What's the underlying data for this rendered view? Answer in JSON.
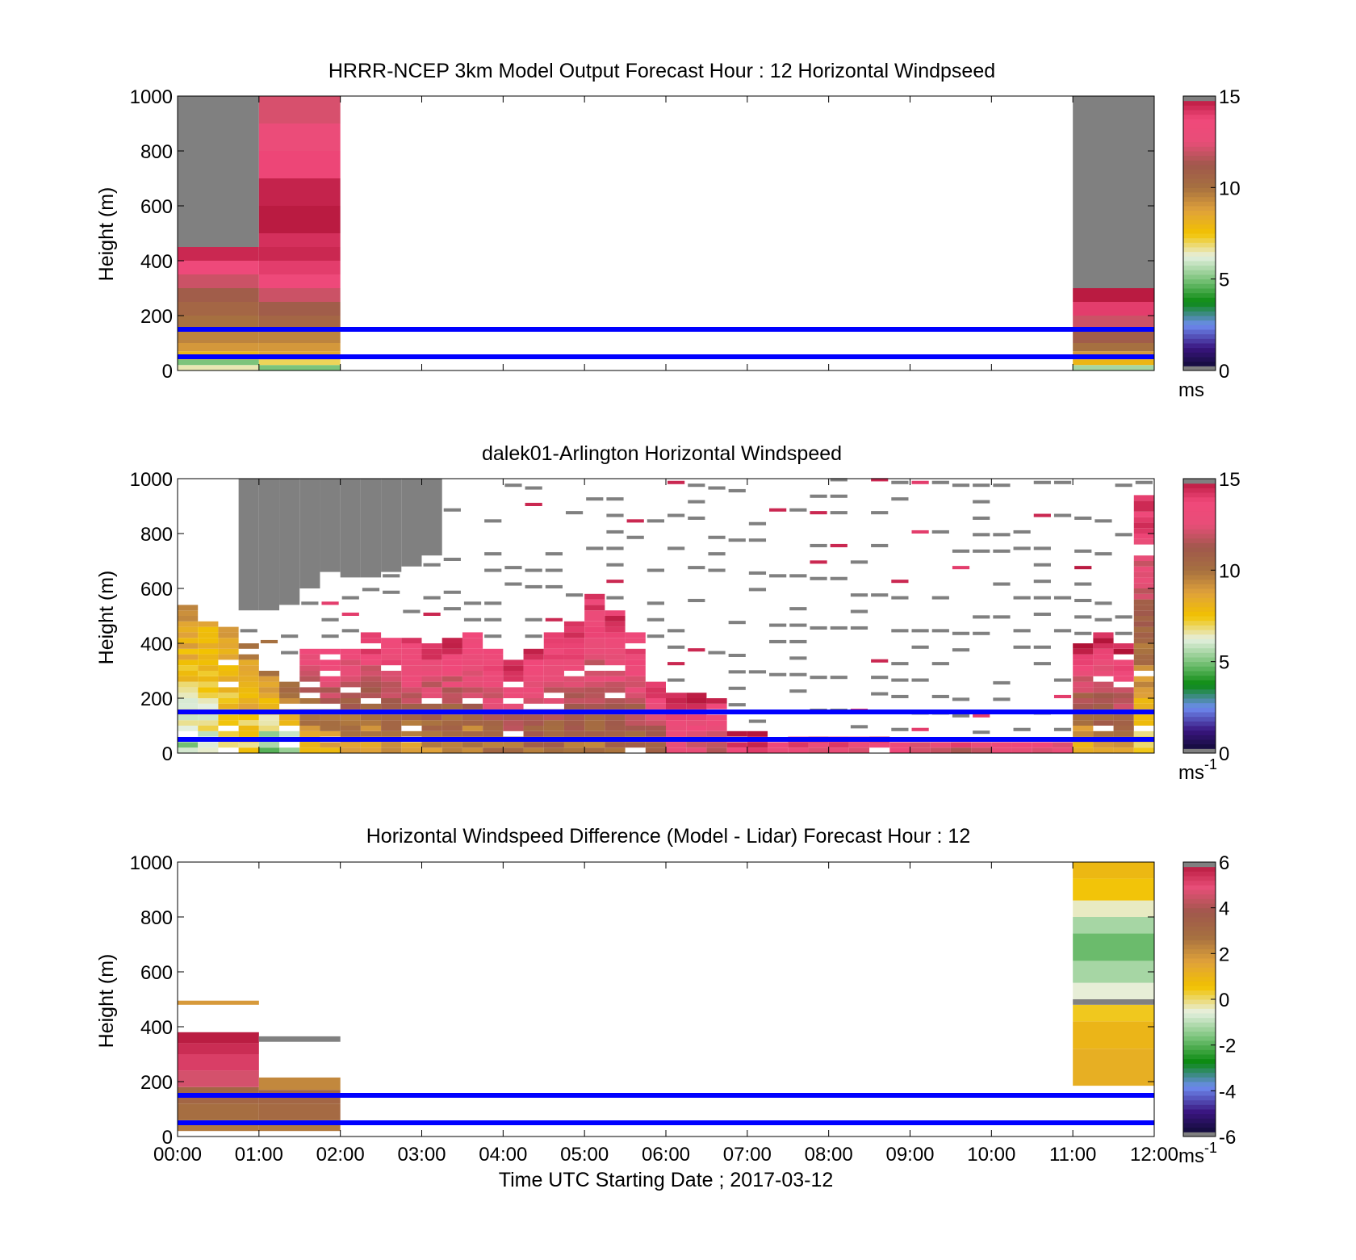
{
  "colors": {
    "gray_missing": "#808080",
    "heights_line": "#0000ff",
    "speed_scale": [
      "#0a0a2a",
      "#3a1580",
      "#6e8cf0",
      "#0a8a10",
      "#7cc47c",
      "#e6f0e0",
      "#f2c200",
      "#e0a23a",
      "#a67040",
      "#a0584c",
      "#e84e78",
      "#f0487a",
      "#b01236"
    ],
    "diff_scale": [
      "#0a0a2a",
      "#3a1580",
      "#6e8cf0",
      "#0a8a10",
      "#7cc47c",
      "#e6f0e0",
      "#f2c200",
      "#e0a23a",
      "#a67040",
      "#a0584c",
      "#e84e78",
      "#b01236"
    ]
  },
  "chart_data": [
    {
      "type": "heatmap",
      "title": "HRRR-NCEP 3km Model Output   Forecast Hour : 12 Horizontal Windpseed",
      "ylabel": "Height (m)",
      "ylim": [
        0,
        1000
      ],
      "yticks": [
        0,
        200,
        400,
        600,
        800,
        1000
      ],
      "xlim": [
        0,
        12
      ],
      "xticks": [
        0,
        1,
        2,
        3,
        4,
        5,
        6,
        7,
        8,
        9,
        10,
        11,
        12
      ],
      "colorbar": {
        "range": [
          0,
          15
        ],
        "ticks": [
          "0",
          "5",
          "10",
          "15"
        ],
        "unit": "ms",
        "unit_sup": ""
      },
      "reference_heights_m": [
        50,
        150
      ],
      "columns": [
        {
          "x0": 0,
          "x1": 1,
          "levels": [
            {
              "top": 20,
              "v": 6.5
            },
            {
              "top": 40,
              "v": 5
            },
            {
              "top": 70,
              "v": 8
            },
            {
              "top": 100,
              "v": 9
            },
            {
              "top": 150,
              "v": 9.5
            },
            {
              "top": 200,
              "v": 10
            },
            {
              "top": 250,
              "v": 10.5
            },
            {
              "top": 300,
              "v": 11
            },
            {
              "top": 350,
              "v": 12
            },
            {
              "top": 400,
              "v": 13.5
            },
            {
              "top": 450,
              "v": 14.5
            },
            {
              "top": 1000,
              "v": null
            }
          ]
        },
        {
          "x0": 1,
          "x1": 2,
          "levels": [
            {
              "top": 20,
              "v": 5
            },
            {
              "top": 40,
              "v": 7
            },
            {
              "top": 70,
              "v": 8.5
            },
            {
              "top": 100,
              "v": 9
            },
            {
              "top": 150,
              "v": 9.5
            },
            {
              "top": 200,
              "v": 10.5
            },
            {
              "top": 250,
              "v": 11
            },
            {
              "top": 300,
              "v": 12
            },
            {
              "top": 350,
              "v": 13.5
            },
            {
              "top": 400,
              "v": 14
            },
            {
              "top": 450,
              "v": 14.5
            },
            {
              "top": 500,
              "v": 14.3
            },
            {
              "top": 600,
              "v": 14.8
            },
            {
              "top": 700,
              "v": 14.6
            },
            {
              "top": 800,
              "v": 13.8
            },
            {
              "top": 900,
              "v": 13
            },
            {
              "top": 1000,
              "v": 12.2
            }
          ]
        },
        {
          "x0": 11,
          "x1": 12,
          "levels": [
            {
              "top": 20,
              "v": 5.5
            },
            {
              "top": 40,
              "v": 8
            },
            {
              "top": 70,
              "v": 9
            },
            {
              "top": 100,
              "v": 10
            },
            {
              "top": 150,
              "v": 11
            },
            {
              "top": 200,
              "v": 12
            },
            {
              "top": 250,
              "v": 14
            },
            {
              "top": 300,
              "v": 14.8
            },
            {
              "top": 1000,
              "v": null
            }
          ]
        }
      ]
    },
    {
      "type": "heatmap",
      "title": "dalek01-Arlington  Horizontal Windspeed",
      "ylabel": "Height (m)",
      "ylim": [
        0,
        1000
      ],
      "yticks": [
        0,
        200,
        400,
        600,
        800,
        1000
      ],
      "xlim": [
        0,
        12
      ],
      "xticks": [
        0,
        1,
        2,
        3,
        4,
        5,
        6,
        7,
        8,
        9,
        10,
        11,
        12
      ],
      "colorbar": {
        "range": [
          0,
          15
        ],
        "ticks": [
          "0",
          "5",
          "10",
          "15"
        ],
        "unit": "ms",
        "unit_sup": "-1"
      },
      "reference_heights_m": [
        50,
        150
      ],
      "profiles": [
        {
          "t": 0.0,
          "data_top": 540,
          "missing_from": null,
          "low": 5.5,
          "high": 9.5
        },
        {
          "t": 0.25,
          "data_top": 500,
          "missing_from": null,
          "low": 6,
          "high": 8.5
        },
        {
          "t": 0.5,
          "data_top": 450,
          "missing_from": null,
          "low": 6.5,
          "high": 9
        },
        {
          "t": 0.75,
          "data_top": 400,
          "missing_from": 520,
          "low": 7,
          "high": 9.5
        },
        {
          "t": 1.0,
          "data_top": 300,
          "missing_from": 520,
          "low": 5,
          "high": 10
        },
        {
          "t": 1.25,
          "data_top": 260,
          "missing_from": 540,
          "low": 5,
          "high": 11
        },
        {
          "t": 1.5,
          "data_top": 380,
          "missing_from": 600,
          "low": 8,
          "high": 13.5
        },
        {
          "t": 1.75,
          "data_top": 380,
          "missing_from": 660,
          "low": 8.5,
          "high": 14
        },
        {
          "t": 2.0,
          "data_top": 400,
          "missing_from": 640,
          "low": 8.5,
          "high": 14
        },
        {
          "t": 2.25,
          "data_top": 430,
          "missing_from": 640,
          "low": 8.5,
          "high": 14.5
        },
        {
          "t": 2.5,
          "data_top": 420,
          "missing_from": 660,
          "low": 9,
          "high": 14.5
        },
        {
          "t": 2.75,
          "data_top": 410,
          "missing_from": 680,
          "low": 9,
          "high": 14.5
        },
        {
          "t": 3.0,
          "data_top": 400,
          "missing_from": 720,
          "low": 9,
          "high": 14.5
        },
        {
          "t": 3.25,
          "data_top": 420,
          "missing_from": 1000,
          "low": 9,
          "high": 14.5
        },
        {
          "t": 3.5,
          "data_top": 440,
          "missing_from": 1000,
          "low": 9,
          "high": 14.5
        },
        {
          "t": 3.75,
          "data_top": 380,
          "missing_from": 1000,
          "low": 10,
          "high": 14.5
        },
        {
          "t": 4.0,
          "data_top": 330,
          "missing_from": 1000,
          "low": 10,
          "high": 14.5
        },
        {
          "t": 4.25,
          "data_top": 380,
          "missing_from": 1000,
          "low": 10,
          "high": 14.5
        },
        {
          "t": 4.5,
          "data_top": 440,
          "missing_from": 1000,
          "low": 10,
          "high": 14.5
        },
        {
          "t": 4.75,
          "data_top": 470,
          "missing_from": 1000,
          "low": 10,
          "high": 14.5
        },
        {
          "t": 5.0,
          "data_top": 580,
          "missing_from": 1000,
          "low": 10,
          "high": 14.5
        },
        {
          "t": 5.25,
          "data_top": 520,
          "missing_from": 1000,
          "low": 10,
          "high": 14.5
        },
        {
          "t": 5.5,
          "data_top": 440,
          "missing_from": 1000,
          "low": 10,
          "high": 14.5
        },
        {
          "t": 5.75,
          "data_top": 260,
          "missing_from": 1000,
          "low": 11,
          "high": 14.5
        },
        {
          "t": 6.0,
          "data_top": 220,
          "missing_from": 1000,
          "low": 12,
          "high": 14.5
        },
        {
          "t": 6.25,
          "data_top": 210,
          "missing_from": 1000,
          "low": 12,
          "high": 14.5
        },
        {
          "t": 6.5,
          "data_top": 200,
          "missing_from": 1000,
          "low": 12,
          "high": 14.5
        },
        {
          "t": 6.75,
          "data_top": 70,
          "missing_from": 1000,
          "low": 13.5,
          "high": 14.5
        },
        {
          "t": 7.0,
          "data_top": 70,
          "missing_from": 1000,
          "low": 13.5,
          "high": 14.5
        },
        {
          "t": 7.25,
          "data_top": 60,
          "missing_from": 1000,
          "low": 13,
          "high": 14.5
        },
        {
          "t": 7.5,
          "data_top": 60,
          "missing_from": 1000,
          "low": 13,
          "high": 14.5
        },
        {
          "t": 7.75,
          "data_top": 50,
          "missing_from": 1000,
          "low": 13,
          "high": 14.5
        },
        {
          "t": 8.0,
          "data_top": 50,
          "missing_from": 1000,
          "low": 13,
          "high": 14.5
        },
        {
          "t": 8.25,
          "data_top": 50,
          "missing_from": 1000,
          "low": 12,
          "high": 14
        },
        {
          "t": 8.5,
          "data_top": 50,
          "missing_from": 1000,
          "low": 13,
          "high": 14.5
        },
        {
          "t": 8.75,
          "data_top": 40,
          "missing_from": 1000,
          "low": 13,
          "high": 14.5
        },
        {
          "t": 9.0,
          "data_top": 40,
          "missing_from": 1000,
          "low": 12,
          "high": 14
        },
        {
          "t": 9.25,
          "data_top": 40,
          "missing_from": 1000,
          "low": 12,
          "high": 14
        },
        {
          "t": 9.5,
          "data_top": 30,
          "missing_from": 1000,
          "low": 12,
          "high": 14
        },
        {
          "t": 9.75,
          "data_top": 30,
          "missing_from": 1000,
          "low": 12,
          "high": 14
        },
        {
          "t": 10.0,
          "data_top": 30,
          "missing_from": 1000,
          "low": 12,
          "high": 14
        },
        {
          "t": 10.25,
          "data_top": 40,
          "missing_from": 1000,
          "low": 13,
          "high": 14.5
        },
        {
          "t": 10.5,
          "data_top": 40,
          "missing_from": 1000,
          "low": 12,
          "high": 14.5
        },
        {
          "t": 10.75,
          "data_top": 40,
          "missing_from": 1000,
          "low": 12,
          "high": 14
        },
        {
          "t": 11.0,
          "data_top": 390,
          "missing_from": 1000,
          "low": 8,
          "high": 14.8
        },
        {
          "t": 11.25,
          "data_top": 440,
          "missing_from": 1000,
          "low": 9,
          "high": 14.8
        },
        {
          "t": 11.5,
          "data_top": 390,
          "missing_from": 1000,
          "low": 9,
          "high": 14.8
        },
        {
          "t": 11.75,
          "data_top": 940,
          "missing_from": 1000,
          "low": 7,
          "high": 14.8
        }
      ]
    },
    {
      "type": "heatmap",
      "title": "Horizontal Windspeed Difference (Model - Lidar) Forecast Hour : 12",
      "xlabel": "Time UTC  Starting Date ; 2017-03-12",
      "ylabel": "Height (m)",
      "ylim": [
        0,
        1000
      ],
      "yticks": [
        0,
        200,
        400,
        600,
        800,
        1000
      ],
      "xlim": [
        0,
        12
      ],
      "xticks": [
        0,
        1,
        2,
        3,
        4,
        5,
        6,
        7,
        8,
        9,
        10,
        11,
        12
      ],
      "xticklabels": [
        "00:00",
        "01:00",
        "02:00",
        "03:00",
        "04:00",
        "05:00",
        "06:00",
        "07:00",
        "08:00",
        "09:00",
        "10:00",
        "11:00",
        "12:00"
      ],
      "colorbar": {
        "range": [
          -6,
          6
        ],
        "ticks": [
          "-6",
          "-4",
          "-2",
          "0",
          "2",
          "4",
          "6"
        ],
        "unit": "ms",
        "unit_sup": "-1"
      },
      "reference_heights_m": [
        50,
        150
      ],
      "columns": [
        {
          "x0": 0,
          "x1": 1,
          "levels": [
            {
              "bottom": 20,
              "top": 60,
              "v": 2.5
            },
            {
              "bottom": 60,
              "top": 120,
              "v": 2.8
            },
            {
              "bottom": 120,
              "top": 180,
              "v": 3.2
            },
            {
              "bottom": 180,
              "top": 240,
              "v": 4.6
            },
            {
              "bottom": 240,
              "top": 300,
              "v": 5.2
            },
            {
              "bottom": 300,
              "top": 340,
              "v": 5.5
            },
            {
              "bottom": 340,
              "top": 380,
              "v": 5.8
            },
            {
              "bottom": 480,
              "top": 495,
              "v": 1.8
            }
          ]
        },
        {
          "x0": 1,
          "x1": 2,
          "levels": [
            {
              "bottom": 20,
              "top": 60,
              "v": 2.5
            },
            {
              "bottom": 60,
              "top": 120,
              "v": 3
            },
            {
              "bottom": 120,
              "top": 170,
              "v": 3.2
            },
            {
              "bottom": 170,
              "top": 215,
              "v": 2.2
            },
            {
              "bottom": 345,
              "top": 365,
              "v": null
            }
          ]
        },
        {
          "x0": 11,
          "x1": 12,
          "levels": [
            {
              "bottom": 185,
              "top": 320,
              "v": 1.2
            },
            {
              "bottom": 320,
              "top": 420,
              "v": 1.0
            },
            {
              "bottom": 420,
              "top": 480,
              "v": 0.4
            },
            {
              "bottom": 480,
              "top": 500,
              "v": null
            },
            {
              "bottom": 500,
              "top": 560,
              "v": -0.5
            },
            {
              "bottom": 560,
              "top": 640,
              "v": -1.2
            },
            {
              "bottom": 640,
              "top": 740,
              "v": -1.8
            },
            {
              "bottom": 740,
              "top": 800,
              "v": -1.2
            },
            {
              "bottom": 800,
              "top": 860,
              "v": -0.4
            },
            {
              "bottom": 860,
              "top": 940,
              "v": 0.5
            },
            {
              "bottom": 940,
              "top": 1000,
              "v": 0.9
            }
          ]
        }
      ]
    }
  ]
}
